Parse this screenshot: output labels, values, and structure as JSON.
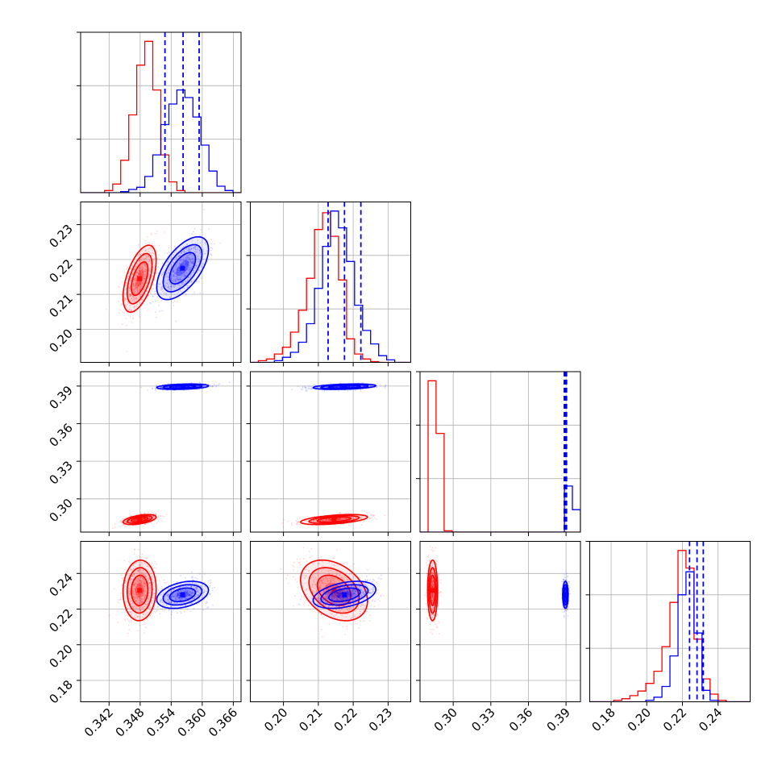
{
  "chart_data": {
    "type": "corner",
    "grid": true,
    "series": [
      {
        "name": "",
        "color": "#ff0000"
      },
      {
        "name": "",
        "color": "#0000ff"
      }
    ],
    "parameters": [
      {
        "id": "p0",
        "range": [
          0.3365,
          0.3675
        ],
        "ticks": [
          0.342,
          0.348,
          0.354,
          0.36,
          0.366
        ],
        "tick_labels": [
          "0.342",
          "0.348",
          "0.354",
          "0.360",
          "0.366"
        ]
      },
      {
        "id": "p1",
        "range": [
          0.1905,
          0.2365
        ],
        "ticks": [
          0.2,
          0.21,
          0.22,
          0.23
        ],
        "tick_labels": [
          "0.20",
          "0.21",
          "0.22",
          "0.23"
        ]
      },
      {
        "id": "p2",
        "range": [
          0.2735,
          0.4015
        ],
        "ticks": [
          0.3,
          0.33,
          0.36,
          0.39
        ],
        "tick_labels": [
          "0.30",
          "0.33",
          "0.36",
          "0.39"
        ]
      },
      {
        "id": "p3",
        "range": [
          0.168,
          0.258
        ],
        "ticks": [
          0.18,
          0.2,
          0.22,
          0.24
        ],
        "tick_labels": [
          "0.18",
          "0.20",
          "0.22",
          "0.24"
        ]
      }
    ],
    "stats": [
      {
        "mean": [
          0.3479,
          0.2145,
          0.2835,
          0.2305
        ],
        "std": [
          0.0016,
          0.0048,
          0.002,
          0.0085
        ],
        "corr": [
          [
            1,
            0.55,
            0.5,
            0.05
          ],
          [
            0.55,
            1,
            0.5,
            -0.35
          ],
          [
            0.5,
            0.5,
            1,
            0
          ],
          [
            0.05,
            -0.35,
            0,
            1
          ]
        ]
      },
      {
        "mean": [
          0.3562,
          0.2175,
          0.3895,
          0.228
        ],
        "std": [
          0.0025,
          0.0045,
          0.0011,
          0.0038
        ],
        "corr": [
          [
            1,
            0.6,
            0.3,
            0.35
          ],
          [
            0.6,
            1,
            0.35,
            0.4
          ],
          [
            0.3,
            0.35,
            1,
            0
          ],
          [
            0.35,
            0.4,
            0,
            1
          ]
        ]
      }
    ],
    "quantile_lines": [
      [
        0.3528,
        0.3563,
        0.3594
      ],
      [
        0.2128,
        0.2175,
        0.2222
      ],
      [
        0.3886,
        0.3895,
        0.3904
      ],
      [
        0.224,
        0.2282,
        0.2317
      ]
    ],
    "quantile_line_color": "#0000ff",
    "histograms": [
      {
        "edges_range": [
          0.3365,
          0.3675
        ],
        "red": [
          0,
          0,
          0,
          2,
          8,
          30,
          72,
          118,
          140,
          95,
          35,
          10,
          2,
          0,
          0,
          0,
          0,
          0,
          0,
          0
        ],
        "blue": [
          0,
          0,
          0,
          0,
          0,
          1,
          3,
          5,
          15,
          35,
          63,
          82,
          95,
          88,
          70,
          44,
          20,
          6,
          2,
          0
        ]
      },
      {
        "edges_range": [
          0.1905,
          0.2365
        ],
        "red": [
          0,
          2,
          4,
          10,
          18,
          36,
          62,
          100,
          158,
          178,
          150,
          98,
          28,
          10,
          4,
          1,
          0,
          0,
          0,
          0
        ],
        "blue": [
          0,
          0,
          0,
          2,
          6,
          12,
          24,
          46,
          88,
          138,
          180,
          160,
          120,
          68,
          38,
          22,
          8,
          3,
          0,
          0
        ]
      },
      {
        "edges_range": [
          0.2735,
          0.4015
        ],
        "red": [
          0,
          230,
          150,
          2,
          0,
          0,
          0,
          0,
          0,
          0,
          0,
          0,
          0,
          0,
          0,
          0,
          0,
          0,
          0,
          0
        ],
        "blue": [
          0,
          0,
          0,
          0,
          0,
          0,
          0,
          0,
          0,
          0,
          0,
          0,
          0,
          0,
          0,
          0,
          0,
          0,
          70,
          34
        ]
      },
      {
        "edges_range": [
          0.168,
          0.258
        ],
        "red": [
          0,
          0,
          0,
          2,
          4,
          8,
          14,
          24,
          40,
          72,
          130,
          198,
          175,
          82,
          30,
          10,
          2,
          0,
          0,
          0
        ],
        "blue": [
          0,
          0,
          0,
          0,
          0,
          0,
          0,
          2,
          6,
          20,
          60,
          140,
          170,
          90,
          15,
          2,
          0,
          0,
          0,
          0
        ]
      }
    ]
  }
}
